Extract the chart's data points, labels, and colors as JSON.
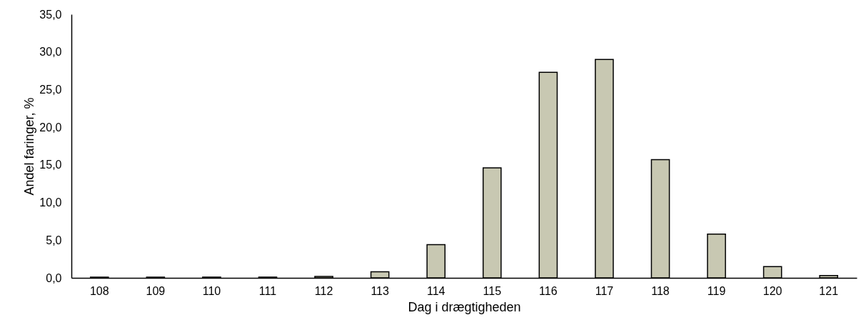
{
  "chart_data": {
    "type": "bar",
    "xlabel": "Dag i drægtigheden",
    "ylabel": "Andel faringer, %",
    "categories": [
      "108",
      "109",
      "110",
      "111",
      "112",
      "113",
      "114",
      "115",
      "116",
      "117",
      "118",
      "119",
      "120",
      "121"
    ],
    "values": [
      0.1,
      0.1,
      0.1,
      0.1,
      0.2,
      0.8,
      4.4,
      14.6,
      27.3,
      29.0,
      15.7,
      5.8,
      1.5,
      0.3
    ],
    "color": "#c8c8b2",
    "ylim": [
      0,
      35
    ],
    "yticks": [
      {
        "value": 0,
        "label": "0,0"
      },
      {
        "value": 5,
        "label": "5,0"
      },
      {
        "value": 10,
        "label": "10,0"
      },
      {
        "value": 15,
        "label": "15,0"
      },
      {
        "value": 20,
        "label": "20,0"
      },
      {
        "value": 25,
        "label": "25,0"
      },
      {
        "value": 30,
        "label": "30,0"
      },
      {
        "value": 35,
        "label": "35,0"
      }
    ],
    "grid": false
  }
}
